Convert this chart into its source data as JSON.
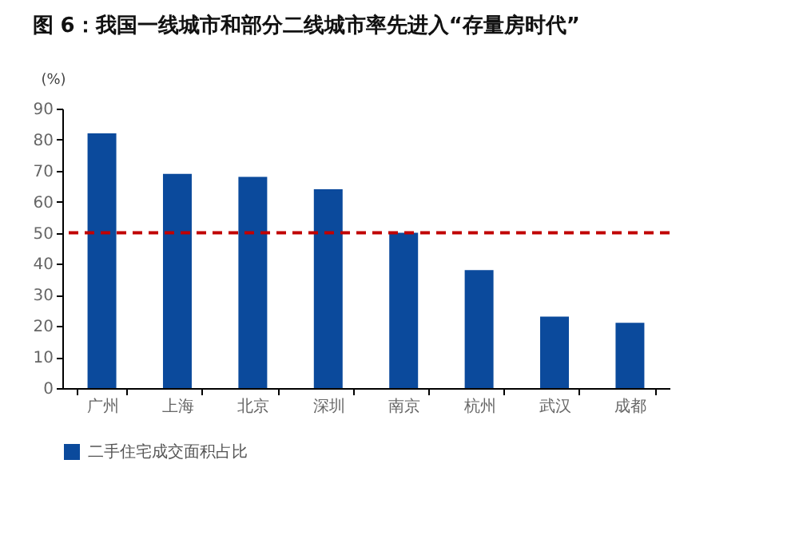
{
  "chart_data": {
    "type": "bar",
    "title": "图 6：我国一线城市和部分二线城市率先进入“存量房时代”",
    "ylabel": "(%)",
    "categories": [
      "广州",
      "上海",
      "北京",
      "深圳",
      "南京",
      "杭州",
      "武汉",
      "成都"
    ],
    "series": [
      {
        "name": "二手住宅成交面积占比",
        "color": "#0b4a9c",
        "values": [
          82,
          69,
          68,
          64,
          50,
          38,
          23,
          21
        ]
      }
    ],
    "ylim": [
      0,
      90
    ],
    "yticks": [
      0,
      10,
      20,
      30,
      40,
      50,
      60,
      70,
      80,
      90
    ],
    "ref_lines": [
      {
        "axis": "y",
        "value": 50,
        "color": "#c00000",
        "line_style": "dashed"
      }
    ],
    "legend": "bottom",
    "grid": false
  }
}
